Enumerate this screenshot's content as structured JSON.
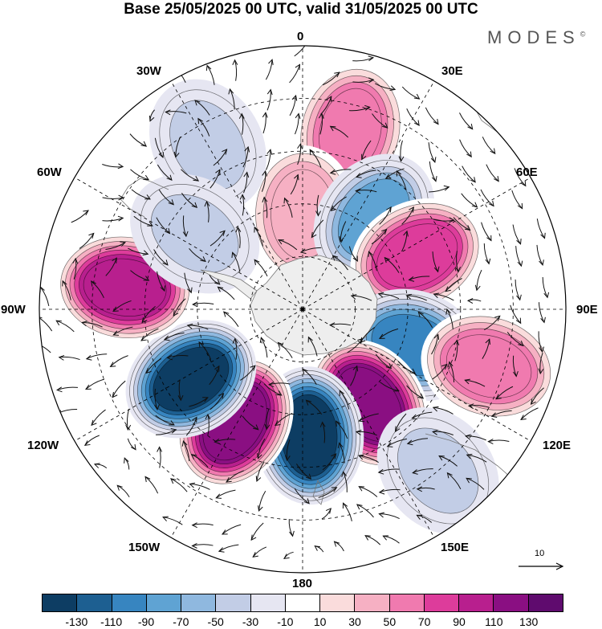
{
  "title": "Base 25/05/2025 00 UTC, valid 31/05/2025 00 UTC",
  "logo": "MODES",
  "logo_mark": "©",
  "lon_labels": {
    "top": "0",
    "top_right": "30E",
    "right_upper": "60E",
    "right": "90E",
    "right_lower": "120E",
    "bottom_right": "150E",
    "bottom": "180",
    "bottom_left": "150W",
    "left_lower": "120W",
    "left": "90W",
    "left_upper": "60W",
    "top_left": "30W"
  },
  "vector_scale": {
    "label": "10"
  },
  "colorbar": {
    "colors": [
      "#0d3d63",
      "#1d5f91",
      "#3785c0",
      "#5fa3d3",
      "#8fb8df",
      "#c2cde6",
      "#e6e6f2",
      "#ffffff",
      "#fadcdc",
      "#f6b0c3",
      "#f07aaf",
      "#dd3c9b",
      "#b81f8e",
      "#8a0f82",
      "#5f0b6e"
    ],
    "tick_labels": [
      "-130",
      "-110",
      "-90",
      "-70",
      "-50",
      "-30",
      "-10",
      "10",
      "30",
      "50",
      "70",
      "90",
      "110",
      "130"
    ]
  },
  "anomalies": [
    {
      "name": "pos",
      "lon": 15,
      "colat": 35,
      "value": 70
    },
    {
      "name": "pos",
      "lon": 0,
      "colat": 18,
      "value": 50
    },
    {
      "name": "neg",
      "lon": -30,
      "colat": 36,
      "value": -40
    },
    {
      "name": "neg",
      "lon": 38,
      "colat": 22,
      "value": -70
    },
    {
      "name": "pos",
      "lon": 65,
      "colat": 24,
      "value": 90
    },
    {
      "name": "neg",
      "lon": 108,
      "colat": 22,
      "value": -100
    },
    {
      "name": "pos",
      "lon": 107,
      "colat": 37,
      "value": 70
    },
    {
      "name": "pos",
      "lon": 145,
      "colat": 22,
      "value": 130
    },
    {
      "name": "neg",
      "lon": 177,
      "colat": 24,
      "value": -130
    },
    {
      "name": "pos",
      "lon": -149,
      "colat": 25,
      "value": 130
    },
    {
      "name": "neg",
      "lon": -122,
      "colat": 25,
      "value": -130
    },
    {
      "name": "pos",
      "lon": -83,
      "colat": 34,
      "value": 110
    },
    {
      "name": "neg",
      "lon": -55,
      "colat": 25,
      "value": -40
    },
    {
      "name": "neg",
      "lon": 140,
      "colat": 40,
      "value": -30
    }
  ]
}
